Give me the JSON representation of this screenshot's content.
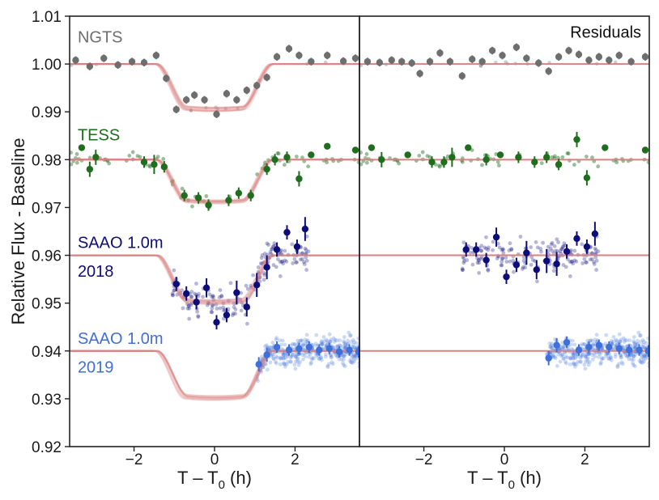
{
  "chart_data": {
    "type": "scatter",
    "ylabel": "Relative Flux - Baseline",
    "xlabel_main": "T – T",
    "xlabel_sub": "0",
    "xlabel_unit": " (h)",
    "xlim": [
      -3.6,
      3.6
    ],
    "ylim": [
      0.92,
      1.01
    ],
    "yticks": [
      0.92,
      0.93,
      0.94,
      0.95,
      0.96,
      0.97,
      0.98,
      0.99,
      1.0,
      1.01
    ],
    "yticklabels": [
      "0.92",
      "0.93",
      "0.94",
      "0.95",
      "0.96",
      "0.97",
      "0.98",
      "0.99",
      "1.00",
      "1.01"
    ],
    "xticks": [
      -2,
      0,
      2
    ],
    "xticklabels": [
      "−2",
      "0",
      "2"
    ],
    "model_color": "#d98080",
    "panels": [
      {
        "name": "fit",
        "annotations": [
          {
            "id": "ngts",
            "text": "NGTS",
            "color": "#6e6e6e",
            "x": -3.4,
            "y": 1.0045
          },
          {
            "id": "tess",
            "text": "TESS",
            "color": "#1e6e1e",
            "x": -3.4,
            "y": 0.984
          },
          {
            "id": "saao18a",
            "text": "SAAO 1.0m",
            "color": "#0d0d7a",
            "x": -3.4,
            "y": 0.9615
          },
          {
            "id": "saao18b",
            "text": "2018",
            "color": "#0d0d7a",
            "x": -3.4,
            "y": 0.9555
          },
          {
            "id": "saao19a",
            "text": "SAAO 1.0m",
            "color": "#3f6fd8",
            "x": -3.4,
            "y": 0.9415
          },
          {
            "id": "saao19b",
            "text": "2019",
            "color": "#3f6fd8",
            "x": -3.4,
            "y": 0.9355
          }
        ]
      },
      {
        "name": "residuals",
        "annotations": [
          {
            "id": "resid",
            "text": "Residuals",
            "color": "#111111",
            "x": 3.4,
            "y": 1.0055
          }
        ]
      }
    ],
    "series": [
      {
        "name": "NGTS",
        "baseline": 1.0,
        "depth": 0.0095,
        "color": "#6e6e6e",
        "binned_fit": [
          {
            "x": -3.45,
            "y": 1.0008,
            "e": 0.0008
          },
          {
            "x": -3.1,
            "y": 0.9995,
            "e": 0.0008
          },
          {
            "x": -2.75,
            "y": 1.0012,
            "e": 0.0008
          },
          {
            "x": -2.4,
            "y": 0.9998,
            "e": 0.0008
          },
          {
            "x": -2.05,
            "y": 1.0005,
            "e": 0.0008
          },
          {
            "x": -1.75,
            "y": 1.0003,
            "e": 0.0008
          },
          {
            "x": -1.45,
            "y": 1.0018,
            "e": 0.0008
          },
          {
            "x": -1.2,
            "y": 0.997,
            "e": 0.0008
          },
          {
            "x": -0.95,
            "y": 0.9905,
            "e": 0.0008
          },
          {
            "x": -0.7,
            "y": 0.9925,
            "e": 0.0008
          },
          {
            "x": -0.5,
            "y": 0.9935,
            "e": 0.0008
          },
          {
            "x": -0.25,
            "y": 0.9925,
            "e": 0.0008
          },
          {
            "x": 0.05,
            "y": 0.9895,
            "e": 0.0008
          },
          {
            "x": 0.3,
            "y": 0.9938,
            "e": 0.0008
          },
          {
            "x": 0.55,
            "y": 0.9925,
            "e": 0.0008
          },
          {
            "x": 0.8,
            "y": 0.9945,
            "e": 0.0008
          },
          {
            "x": 1.05,
            "y": 0.9955,
            "e": 0.0008
          },
          {
            "x": 1.3,
            "y": 0.9972,
            "e": 0.0008
          },
          {
            "x": 1.55,
            "y": 1.0015,
            "e": 0.0008
          },
          {
            "x": 1.85,
            "y": 1.0032,
            "e": 0.0008
          },
          {
            "x": 2.1,
            "y": 1.0018,
            "e": 0.0008
          },
          {
            "x": 2.4,
            "y": 1.0005,
            "e": 0.0008
          },
          {
            "x": 2.8,
            "y": 1.0018,
            "e": 0.0008
          },
          {
            "x": 3.2,
            "y": 1.0006,
            "e": 0.0008
          },
          {
            "x": 3.5,
            "y": 1.0012,
            "e": 0.0008
          }
        ],
        "binned_resid": [
          {
            "x": -3.4,
            "y": 1.0005,
            "e": 0.0008
          },
          {
            "x": -3.1,
            "y": 1.0003,
            "e": 0.0008
          },
          {
            "x": -2.8,
            "y": 1.0008,
            "e": 0.0008
          },
          {
            "x": -2.55,
            "y": 1.0005,
            "e": 0.0008
          },
          {
            "x": -2.3,
            "y": 1.0002,
            "e": 0.0008
          },
          {
            "x": -2.1,
            "y": 0.998,
            "e": 0.0008
          },
          {
            "x": -1.85,
            "y": 1.0005,
            "e": 0.0008
          },
          {
            "x": -1.6,
            "y": 1.0023,
            "e": 0.0008
          },
          {
            "x": -1.35,
            "y": 1.0005,
            "e": 0.0008
          },
          {
            "x": -1.05,
            "y": 0.9975,
            "e": 0.0008
          },
          {
            "x": -0.8,
            "y": 1.001,
            "e": 0.0008
          },
          {
            "x": -0.55,
            "y": 1.0005,
            "e": 0.0008
          },
          {
            "x": -0.3,
            "y": 1.0028,
            "e": 0.0008
          },
          {
            "x": -0.05,
            "y": 1.0018,
            "e": 0.0008
          },
          {
            "x": 0.3,
            "y": 1.0035,
            "e": 0.0008
          },
          {
            "x": 0.55,
            "y": 1.0012,
            "e": 0.0008
          },
          {
            "x": 0.85,
            "y": 1.0002,
            "e": 0.0008
          },
          {
            "x": 1.1,
            "y": 0.9985,
            "e": 0.0008
          },
          {
            "x": 1.35,
            "y": 1.0015,
            "e": 0.0008
          },
          {
            "x": 1.6,
            "y": 1.0028,
            "e": 0.0008
          },
          {
            "x": 1.85,
            "y": 1.002,
            "e": 0.0008
          },
          {
            "x": 2.1,
            "y": 1.0008,
            "e": 0.0008
          },
          {
            "x": 2.35,
            "y": 1.0015,
            "e": 0.0008
          },
          {
            "x": 2.6,
            "y": 1.0008,
            "e": 0.0008
          },
          {
            "x": 2.85,
            "y": 1.0018,
            "e": 0.0008
          },
          {
            "x": 3.15,
            "y": 1.0005,
            "e": 0.0008
          },
          {
            "x": 3.5,
            "y": 1.0015,
            "e": 0.0008
          }
        ]
      },
      {
        "name": "TESS",
        "baseline": 0.98,
        "depth": 0.0088,
        "color": "#1e6e1e",
        "binned_fit": [
          {
            "x": -3.3,
            "y": 0.9825,
            "e": 0.0006
          },
          {
            "x": -3.1,
            "y": 0.978,
            "e": 0.0016
          },
          {
            "x": -2.95,
            "y": 0.9805,
            "e": 0.0016
          },
          {
            "x": -1.75,
            "y": 0.9795,
            "e": 0.0012
          },
          {
            "x": -1.5,
            "y": 0.979,
            "e": 0.002
          },
          {
            "x": -1.25,
            "y": 0.9785,
            "e": 0.0012
          },
          {
            "x": -0.75,
            "y": 0.9725,
            "e": 0.0012
          },
          {
            "x": -0.4,
            "y": 0.972,
            "e": 0.0012
          },
          {
            "x": -0.15,
            "y": 0.9705,
            "e": 0.0012
          },
          {
            "x": 0.35,
            "y": 0.9715,
            "e": 0.0012
          },
          {
            "x": 0.6,
            "y": 0.973,
            "e": 0.0012
          },
          {
            "x": 0.9,
            "y": 0.9725,
            "e": 0.0012
          },
          {
            "x": 1.3,
            "y": 0.978,
            "e": 0.0012
          },
          {
            "x": 1.5,
            "y": 0.98,
            "e": 0.0012
          },
          {
            "x": 1.8,
            "y": 0.9805,
            "e": 0.0012
          },
          {
            "x": 2.1,
            "y": 0.976,
            "e": 0.0016
          },
          {
            "x": 2.4,
            "y": 0.981,
            "e": 0.0006
          },
          {
            "x": 2.8,
            "y": 0.9828,
            "e": 0.0006
          },
          {
            "x": 3.5,
            "y": 0.982,
            "e": 0.0006
          }
        ],
        "binned_resid": [
          {
            "x": -3.3,
            "y": 0.9825,
            "e": 0.0006
          },
          {
            "x": -3.05,
            "y": 0.98,
            "e": 0.0016
          },
          {
            "x": -2.4,
            "y": 0.981,
            "e": 0.0006
          },
          {
            "x": -1.8,
            "y": 0.9795,
            "e": 0.0012
          },
          {
            "x": -1.5,
            "y": 0.9795,
            "e": 0.0012
          },
          {
            "x": -1.3,
            "y": 0.9805,
            "e": 0.002
          },
          {
            "x": -0.9,
            "y": 0.9825,
            "e": 0.0006
          },
          {
            "x": -0.45,
            "y": 0.98,
            "e": 0.0012
          },
          {
            "x": -0.1,
            "y": 0.981,
            "e": 0.0006
          },
          {
            "x": 0.35,
            "y": 0.9805,
            "e": 0.0012
          },
          {
            "x": 0.75,
            "y": 0.9795,
            "e": 0.0012
          },
          {
            "x": 1.05,
            "y": 0.9805,
            "e": 0.0012
          },
          {
            "x": 1.35,
            "y": 0.979,
            "e": 0.0012
          },
          {
            "x": 1.8,
            "y": 0.9842,
            "e": 0.0016
          },
          {
            "x": 2.05,
            "y": 0.9762,
            "e": 0.0016
          },
          {
            "x": 2.5,
            "y": 0.9825,
            "e": 0.0006
          },
          {
            "x": 3.5,
            "y": 0.982,
            "e": 0.0006
          }
        ]
      },
      {
        "name": "SAAO 1.0m 2018",
        "baseline": 0.96,
        "depth": 0.0098,
        "color": "#0d0d7a",
        "binned_fit": [
          {
            "x": -0.95,
            "y": 0.954,
            "e": 0.0015
          },
          {
            "x": -0.7,
            "y": 0.952,
            "e": 0.0015
          },
          {
            "x": -0.45,
            "y": 0.9502,
            "e": 0.0015
          },
          {
            "x": -0.2,
            "y": 0.9532,
            "e": 0.002
          },
          {
            "x": 0.05,
            "y": 0.946,
            "e": 0.0015
          },
          {
            "x": 0.3,
            "y": 0.9475,
            "e": 0.0015
          },
          {
            "x": 0.55,
            "y": 0.9522,
            "e": 0.0025
          },
          {
            "x": 0.8,
            "y": 0.9492,
            "e": 0.002
          },
          {
            "x": 1.05,
            "y": 0.9538,
            "e": 0.0025
          },
          {
            "x": 1.3,
            "y": 0.9575,
            "e": 0.0025
          },
          {
            "x": 1.55,
            "y": 0.9612,
            "e": 0.0015
          },
          {
            "x": 1.8,
            "y": 0.9648,
            "e": 0.0015
          },
          {
            "x": 2.05,
            "y": 0.9618,
            "e": 0.0015
          },
          {
            "x": 2.25,
            "y": 0.9655,
            "e": 0.0025
          }
        ],
        "binned_resid": [
          {
            "x": -0.95,
            "y": 0.9612,
            "e": 0.0015
          },
          {
            "x": -0.7,
            "y": 0.9612,
            "e": 0.0015
          },
          {
            "x": -0.45,
            "y": 0.959,
            "e": 0.0015
          },
          {
            "x": -0.2,
            "y": 0.9638,
            "e": 0.002
          },
          {
            "x": 0.05,
            "y": 0.9555,
            "e": 0.0015
          },
          {
            "x": 0.3,
            "y": 0.958,
            "e": 0.0015
          },
          {
            "x": 0.55,
            "y": 0.9605,
            "e": 0.0025
          },
          {
            "x": 0.8,
            "y": 0.957,
            "e": 0.002
          },
          {
            "x": 1.05,
            "y": 0.9588,
            "e": 0.0025
          },
          {
            "x": 1.3,
            "y": 0.9582,
            "e": 0.0025
          },
          {
            "x": 1.55,
            "y": 0.9608,
            "e": 0.0015
          },
          {
            "x": 1.8,
            "y": 0.9635,
            "e": 0.0015
          },
          {
            "x": 2.05,
            "y": 0.9618,
            "e": 0.0015
          },
          {
            "x": 2.25,
            "y": 0.9645,
            "e": 0.0025
          }
        ]
      },
      {
        "name": "SAAO 1.0m 2019",
        "baseline": 0.94,
        "depth": 0.0098,
        "color": "#3f6fd8",
        "binned_fit": [
          {
            "x": 1.1,
            "y": 0.9372,
            "e": 0.0015
          },
          {
            "x": 1.3,
            "y": 0.9392,
            "e": 0.0015
          },
          {
            "x": 1.55,
            "y": 0.9408,
            "e": 0.0012
          },
          {
            "x": 1.85,
            "y": 0.9402,
            "e": 0.0012
          },
          {
            "x": 2.1,
            "y": 0.9405,
            "e": 0.0012
          },
          {
            "x": 2.35,
            "y": 0.9408,
            "e": 0.0012
          },
          {
            "x": 2.6,
            "y": 0.9402,
            "e": 0.0012
          },
          {
            "x": 2.85,
            "y": 0.9405,
            "e": 0.0012
          },
          {
            "x": 3.1,
            "y": 0.9398,
            "e": 0.0012
          },
          {
            "x": 3.35,
            "y": 0.9402,
            "e": 0.0012
          },
          {
            "x": 3.58,
            "y": 0.9398,
            "e": 0.0012
          }
        ],
        "binned_resid": [
          {
            "x": 1.1,
            "y": 0.9385,
            "e": 0.0015
          },
          {
            "x": 1.3,
            "y": 0.9412,
            "e": 0.0015
          },
          {
            "x": 1.55,
            "y": 0.9418,
            "e": 0.0012
          },
          {
            "x": 1.85,
            "y": 0.9402,
            "e": 0.0012
          },
          {
            "x": 2.1,
            "y": 0.9408,
            "e": 0.0012
          },
          {
            "x": 2.35,
            "y": 0.9412,
            "e": 0.0012
          },
          {
            "x": 2.6,
            "y": 0.9408,
            "e": 0.0012
          },
          {
            "x": 2.85,
            "y": 0.9405,
            "e": 0.0012
          },
          {
            "x": 3.1,
            "y": 0.9402,
            "e": 0.0012
          },
          {
            "x": 3.35,
            "y": 0.9402,
            "e": 0.0012
          },
          {
            "x": 3.58,
            "y": 0.94,
            "e": 0.0012
          }
        ]
      }
    ]
  }
}
